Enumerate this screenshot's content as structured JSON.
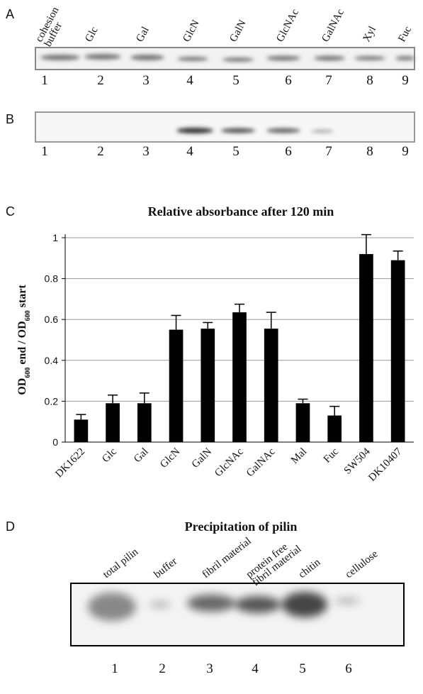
{
  "panel_a": {
    "label": "A",
    "lanes": [
      [
        "cohesion",
        "buffer"
      ],
      [
        "Glc"
      ],
      [
        "Gal"
      ],
      [
        "GlcN"
      ],
      [
        "GalN"
      ],
      [
        "GlcNAc"
      ],
      [
        "GalNAc"
      ],
      [
        "Xyl"
      ],
      [
        "Fuc"
      ]
    ],
    "numbers": [
      1,
      2,
      3,
      4,
      5,
      6,
      7,
      8,
      9
    ]
  },
  "panel_b": {
    "label": "B",
    "numbers": [
      1,
      2,
      3,
      4,
      5,
      6,
      7,
      8,
      9
    ]
  },
  "chart_data": {
    "type": "bar",
    "panel_label": "C",
    "title": "Relative absorbance after 120 min",
    "y_label": [
      "OD",
      "600",
      " end / OD",
      "600",
      " start"
    ],
    "categories": [
      "DK1622",
      "Glc",
      "Gal",
      "GlcN",
      "GalN",
      "GlcNAc",
      "GalNAc",
      "Mal",
      "Fuc",
      "SW504",
      "DK10407"
    ],
    "values": [
      0.11,
      0.19,
      0.19,
      0.55,
      0.555,
      0.635,
      0.555,
      0.19,
      0.13,
      0.92,
      0.89
    ],
    "errors": [
      0.025,
      0.04,
      0.05,
      0.07,
      0.03,
      0.04,
      0.08,
      0.02,
      0.045,
      0.095,
      0.045
    ],
    "color": "#000000",
    "ylim": [
      0,
      1
    ],
    "yticks": [
      0,
      0.2,
      0.4,
      0.6,
      0.8,
      1
    ],
    "grid": true
  },
  "panel_d": {
    "label": "D",
    "title": "Precipitation of pilin",
    "lanes": [
      [
        "total pilin"
      ],
      [
        "buffer"
      ],
      [
        "fibril material"
      ],
      [
        "protein free",
        "fibril material"
      ],
      [
        "chitin"
      ],
      [
        "cellulose"
      ]
    ],
    "numbers": [
      1,
      2,
      3,
      4,
      5,
      6
    ]
  }
}
